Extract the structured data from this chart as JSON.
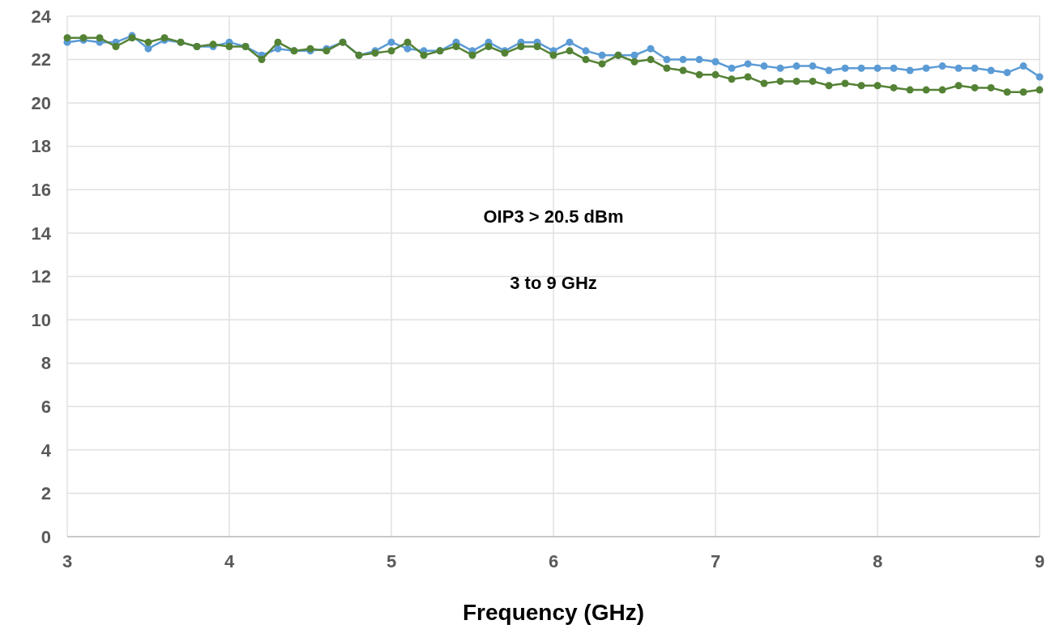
{
  "chart_data": {
    "type": "line",
    "xlabel": "Frequency (GHz)",
    "xlim": [
      3,
      9
    ],
    "xticks": [
      3,
      4,
      5,
      6,
      7,
      8,
      9
    ],
    "ylim": [
      0,
      24
    ],
    "yticks": [
      0,
      2,
      4,
      6,
      8,
      10,
      12,
      14,
      16,
      18,
      20,
      22,
      24
    ],
    "grid": true,
    "marker": "circle",
    "line_style": "solid",
    "annotations": [
      "OIP3 > 20.5 dBm",
      "3 to 9 GHz"
    ],
    "x": [
      3.0,
      3.1,
      3.2,
      3.3,
      3.4,
      3.5,
      3.6,
      3.7,
      3.8,
      3.9,
      4.0,
      4.1,
      4.2,
      4.3,
      4.4,
      4.5,
      4.6,
      4.7,
      4.8,
      4.9,
      5.0,
      5.1,
      5.2,
      5.3,
      5.4,
      5.5,
      5.6,
      5.7,
      5.8,
      5.9,
      6.0,
      6.1,
      6.2,
      6.3,
      6.4,
      6.5,
      6.6,
      6.7,
      6.8,
      6.9,
      7.0,
      7.1,
      7.2,
      7.3,
      7.4,
      7.5,
      7.6,
      7.7,
      7.8,
      7.9,
      8.0,
      8.1,
      8.2,
      8.3,
      8.4,
      8.5,
      8.6,
      8.7,
      8.8,
      8.9,
      9.0
    ],
    "series": [
      {
        "color": "#5b9bd5",
        "values": [
          22.8,
          22.9,
          22.8,
          22.8,
          23.1,
          22.5,
          22.9,
          22.8,
          22.6,
          22.6,
          22.8,
          22.6,
          22.2,
          22.5,
          22.4,
          22.4,
          22.5,
          22.8,
          22.2,
          22.4,
          22.8,
          22.5,
          22.4,
          22.4,
          22.8,
          22.4,
          22.8,
          22.4,
          22.8,
          22.8,
          22.4,
          22.8,
          22.4,
          22.2,
          22.2,
          22.2,
          22.5,
          22.0,
          22.0,
          22.0,
          21.9,
          21.6,
          21.8,
          21.7,
          21.6,
          21.7,
          21.7,
          21.5,
          21.6,
          21.6,
          21.6,
          21.6,
          21.5,
          21.6,
          21.7,
          21.6,
          21.6,
          21.5,
          21.4,
          21.7,
          21.2
        ]
      },
      {
        "color": "#548235",
        "values": [
          23.0,
          23.0,
          23.0,
          22.6,
          23.0,
          22.8,
          23.0,
          22.8,
          22.6,
          22.7,
          22.6,
          22.6,
          22.0,
          22.8,
          22.4,
          22.5,
          22.4,
          22.8,
          22.2,
          22.3,
          22.4,
          22.8,
          22.2,
          22.4,
          22.6,
          22.2,
          22.6,
          22.3,
          22.6,
          22.6,
          22.2,
          22.4,
          22.0,
          21.8,
          22.2,
          21.9,
          22.0,
          21.6,
          21.5,
          21.3,
          21.3,
          21.1,
          21.2,
          20.9,
          21.0,
          21.0,
          21.0,
          20.8,
          20.9,
          20.8,
          20.8,
          20.7,
          20.6,
          20.6,
          20.6,
          20.8,
          20.7,
          20.7,
          20.5,
          20.5,
          20.6
        ]
      }
    ]
  }
}
